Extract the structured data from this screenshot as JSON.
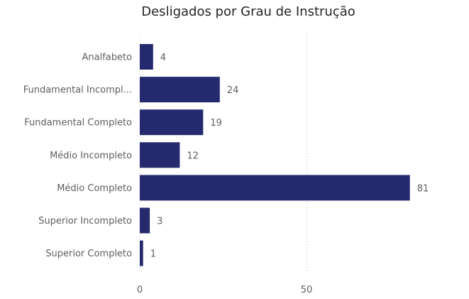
{
  "chart_data": {
    "type": "bar",
    "orientation": "horizontal",
    "title": "Desligados por Grau de Instrução",
    "categories": [
      "Analfabeto",
      "Fundamental Incompl...",
      "Fundamental Completo",
      "Médio Incompleto",
      "Médio Completo",
      "Superior Incompleto",
      "Superior Completo"
    ],
    "values": [
      4,
      24,
      19,
      12,
      81,
      3,
      1
    ],
    "xticks": [
      "0",
      "50"
    ],
    "xlim": [
      0,
      87
    ],
    "grid": true,
    "bar_color": "#252a6e"
  }
}
